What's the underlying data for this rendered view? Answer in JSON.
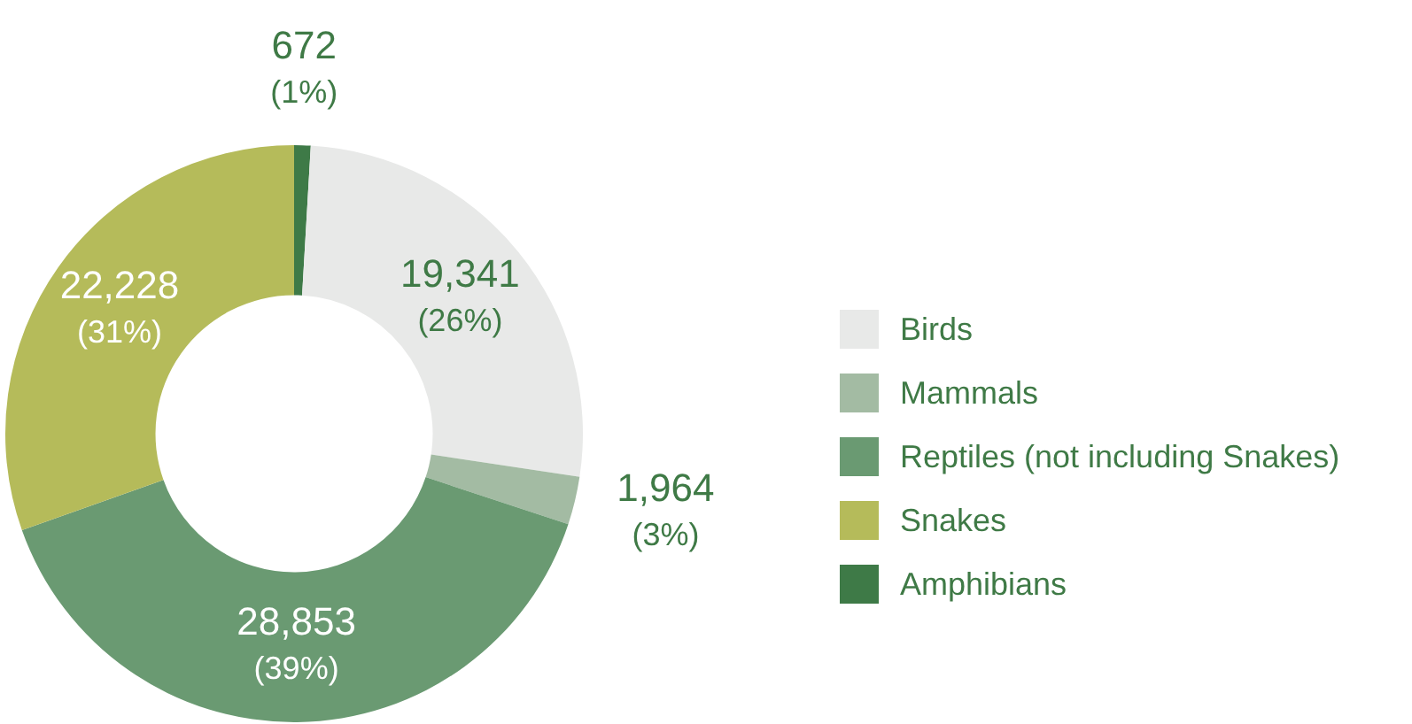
{
  "chart_data": {
    "type": "donut",
    "categories": [
      "Amphibians",
      "Birds",
      "Mammals",
      "Reptiles (not including Snakes)",
      "Snakes"
    ],
    "values": [
      672,
      19341,
      1964,
      28853,
      22228
    ],
    "colors": [
      "#3e7a47",
      "#e8e9e8",
      "#a3bba3",
      "#6a9a72",
      "#b5bb5a"
    ],
    "value_labels": [
      "672\n(1%)",
      "19,341\n(26%)",
      "1,964\n(3%)",
      "28,853\n(39%)",
      "22,228\n(31%)"
    ],
    "legend": "right"
  }
}
